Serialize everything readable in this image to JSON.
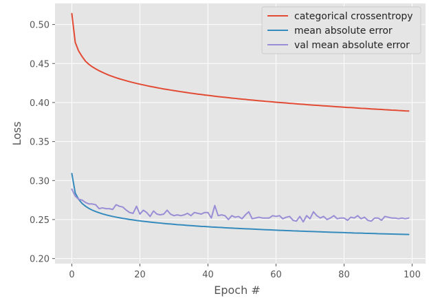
{
  "chart_data": {
    "type": "line",
    "title": "",
    "xlabel": "Epoch #",
    "ylabel": "Loss",
    "xlim": [
      -4.95,
      103.95
    ],
    "ylim": [
      0.1935,
      0.527
    ],
    "xticks": [
      0,
      20,
      40,
      60,
      80,
      100
    ],
    "yticks": [
      0.2,
      0.25,
      0.3,
      0.35,
      0.4,
      0.45,
      0.5
    ],
    "xtick_labels": [
      "0",
      "20",
      "40",
      "60",
      "80",
      "100"
    ],
    "ytick_labels": [
      "0.20",
      "0.25",
      "0.30",
      "0.35",
      "0.40",
      "0.45",
      "0.50"
    ],
    "grid": true,
    "legend_position": "top-right",
    "x": [
      0,
      1,
      2,
      3,
      4,
      5,
      6,
      7,
      8,
      9,
      10,
      11,
      12,
      13,
      14,
      15,
      16,
      17,
      18,
      19,
      20,
      21,
      22,
      23,
      24,
      25,
      26,
      27,
      28,
      29,
      30,
      31,
      32,
      33,
      34,
      35,
      36,
      37,
      38,
      39,
      40,
      41,
      42,
      43,
      44,
      45,
      46,
      47,
      48,
      49,
      50,
      51,
      52,
      53,
      54,
      55,
      56,
      57,
      58,
      59,
      60,
      61,
      62,
      63,
      64,
      65,
      66,
      67,
      68,
      69,
      70,
      71,
      72,
      73,
      74,
      75,
      76,
      77,
      78,
      79,
      80,
      81,
      82,
      83,
      84,
      85,
      86,
      87,
      88,
      89,
      90,
      91,
      92,
      93,
      94,
      95,
      96,
      97,
      98,
      99
    ],
    "series": [
      {
        "name": "categorical crossentropy",
        "color": "#E24A33",
        "values": [
          0.514,
          0.477,
          0.466,
          0.459,
          0.453,
          0.449,
          0.4458,
          0.4432,
          0.4408,
          0.4387,
          0.4367,
          0.4349,
          0.4333,
          0.4318,
          0.4304,
          0.4291,
          0.4279,
          0.4267,
          0.4256,
          0.4245,
          0.4235,
          0.4226,
          0.4216,
          0.4207,
          0.4199,
          0.419,
          0.4182,
          0.4174,
          0.4167,
          0.416,
          0.4153,
          0.4146,
          0.4139,
          0.4133,
          0.4126,
          0.412,
          0.4114,
          0.4108,
          0.4103,
          0.4097,
          0.4092,
          0.4087,
          0.4081,
          0.4076,
          0.4071,
          0.4067,
          0.4062,
          0.4057,
          0.4053,
          0.4048,
          0.4044,
          0.404,
          0.4035,
          0.4031,
          0.4027,
          0.4023,
          0.4019,
          0.4015,
          0.4012,
          0.4008,
          0.4004,
          0.4001,
          0.3997,
          0.3994,
          0.399,
          0.3987,
          0.3983,
          0.398,
          0.3977,
          0.3973,
          0.397,
          0.3967,
          0.3964,
          0.3961,
          0.3958,
          0.3955,
          0.3952,
          0.3949,
          0.3946,
          0.3943,
          0.394,
          0.3937,
          0.3935,
          0.3932,
          0.3929,
          0.3926,
          0.3924,
          0.3921,
          0.3918,
          0.3916,
          0.3913,
          0.3911,
          0.3908,
          0.3906,
          0.3903,
          0.3901,
          0.3898,
          0.3896,
          0.3893,
          0.3891
        ]
      },
      {
        "name": "mean absolute error",
        "color": "#348ABD",
        "values": [
          0.309,
          0.284,
          0.2759,
          0.2707,
          0.2671,
          0.2643,
          0.2621,
          0.2603,
          0.2587,
          0.2573,
          0.2561,
          0.255,
          0.254,
          0.2531,
          0.2523,
          0.2515,
          0.2508,
          0.2501,
          0.2495,
          0.2489,
          0.2483,
          0.2478,
          0.2473,
          0.2468,
          0.2463,
          0.2459,
          0.2455,
          0.245,
          0.2446,
          0.2443,
          0.2439,
          0.2435,
          0.2432,
          0.2429,
          0.2425,
          0.2422,
          0.2419,
          0.2416,
          0.2413,
          0.2411,
          0.2408,
          0.2405,
          0.2403,
          0.24,
          0.2398,
          0.2395,
          0.2393,
          0.2391,
          0.2388,
          0.2386,
          0.2384,
          0.2382,
          0.238,
          0.2378,
          0.2376,
          0.2374,
          0.2372,
          0.237,
          0.2368,
          0.2366,
          0.2364,
          0.2362,
          0.2361,
          0.2359,
          0.2357,
          0.2355,
          0.2354,
          0.2352,
          0.2351,
          0.2349,
          0.2347,
          0.2346,
          0.2344,
          0.2343,
          0.2341,
          0.234,
          0.2338,
          0.2337,
          0.2335,
          0.2334,
          0.2333,
          0.2331,
          0.233,
          0.2328,
          0.2327,
          0.2326,
          0.2324,
          0.2323,
          0.2322,
          0.2321,
          0.2319,
          0.2318,
          0.2317,
          0.2316,
          0.2314,
          0.2313,
          0.2312,
          0.2311,
          0.231,
          0.2309
        ]
      },
      {
        "name": "val mean absolute error",
        "color": "#988ED5",
        "values": [
          0.289,
          0.28,
          0.276,
          0.275,
          0.272,
          0.27,
          0.27,
          0.269,
          0.264,
          0.265,
          0.264,
          0.264,
          0.263,
          0.269,
          0.267,
          0.266,
          0.262,
          0.259,
          0.258,
          0.267,
          0.257,
          0.262,
          0.259,
          0.254,
          0.261,
          0.257,
          0.256,
          0.257,
          0.262,
          0.257,
          0.255,
          0.256,
          0.255,
          0.256,
          0.258,
          0.255,
          0.259,
          0.258,
          0.257,
          0.259,
          0.259,
          0.252,
          0.268,
          0.255,
          0.256,
          0.255,
          0.25,
          0.255,
          0.253,
          0.254,
          0.251,
          0.256,
          0.26,
          0.251,
          0.252,
          0.253,
          0.252,
          0.252,
          0.252,
          0.255,
          0.254,
          0.255,
          0.251,
          0.253,
          0.254,
          0.249,
          0.248,
          0.254,
          0.247,
          0.255,
          0.251,
          0.26,
          0.255,
          0.252,
          0.254,
          0.25,
          0.252,
          0.255,
          0.251,
          0.252,
          0.252,
          0.249,
          0.253,
          0.252,
          0.255,
          0.251,
          0.253,
          0.249,
          0.248,
          0.252,
          0.252,
          0.249,
          0.254,
          0.253,
          0.252,
          0.252,
          0.251,
          0.252,
          0.251,
          0.252
        ]
      }
    ]
  }
}
